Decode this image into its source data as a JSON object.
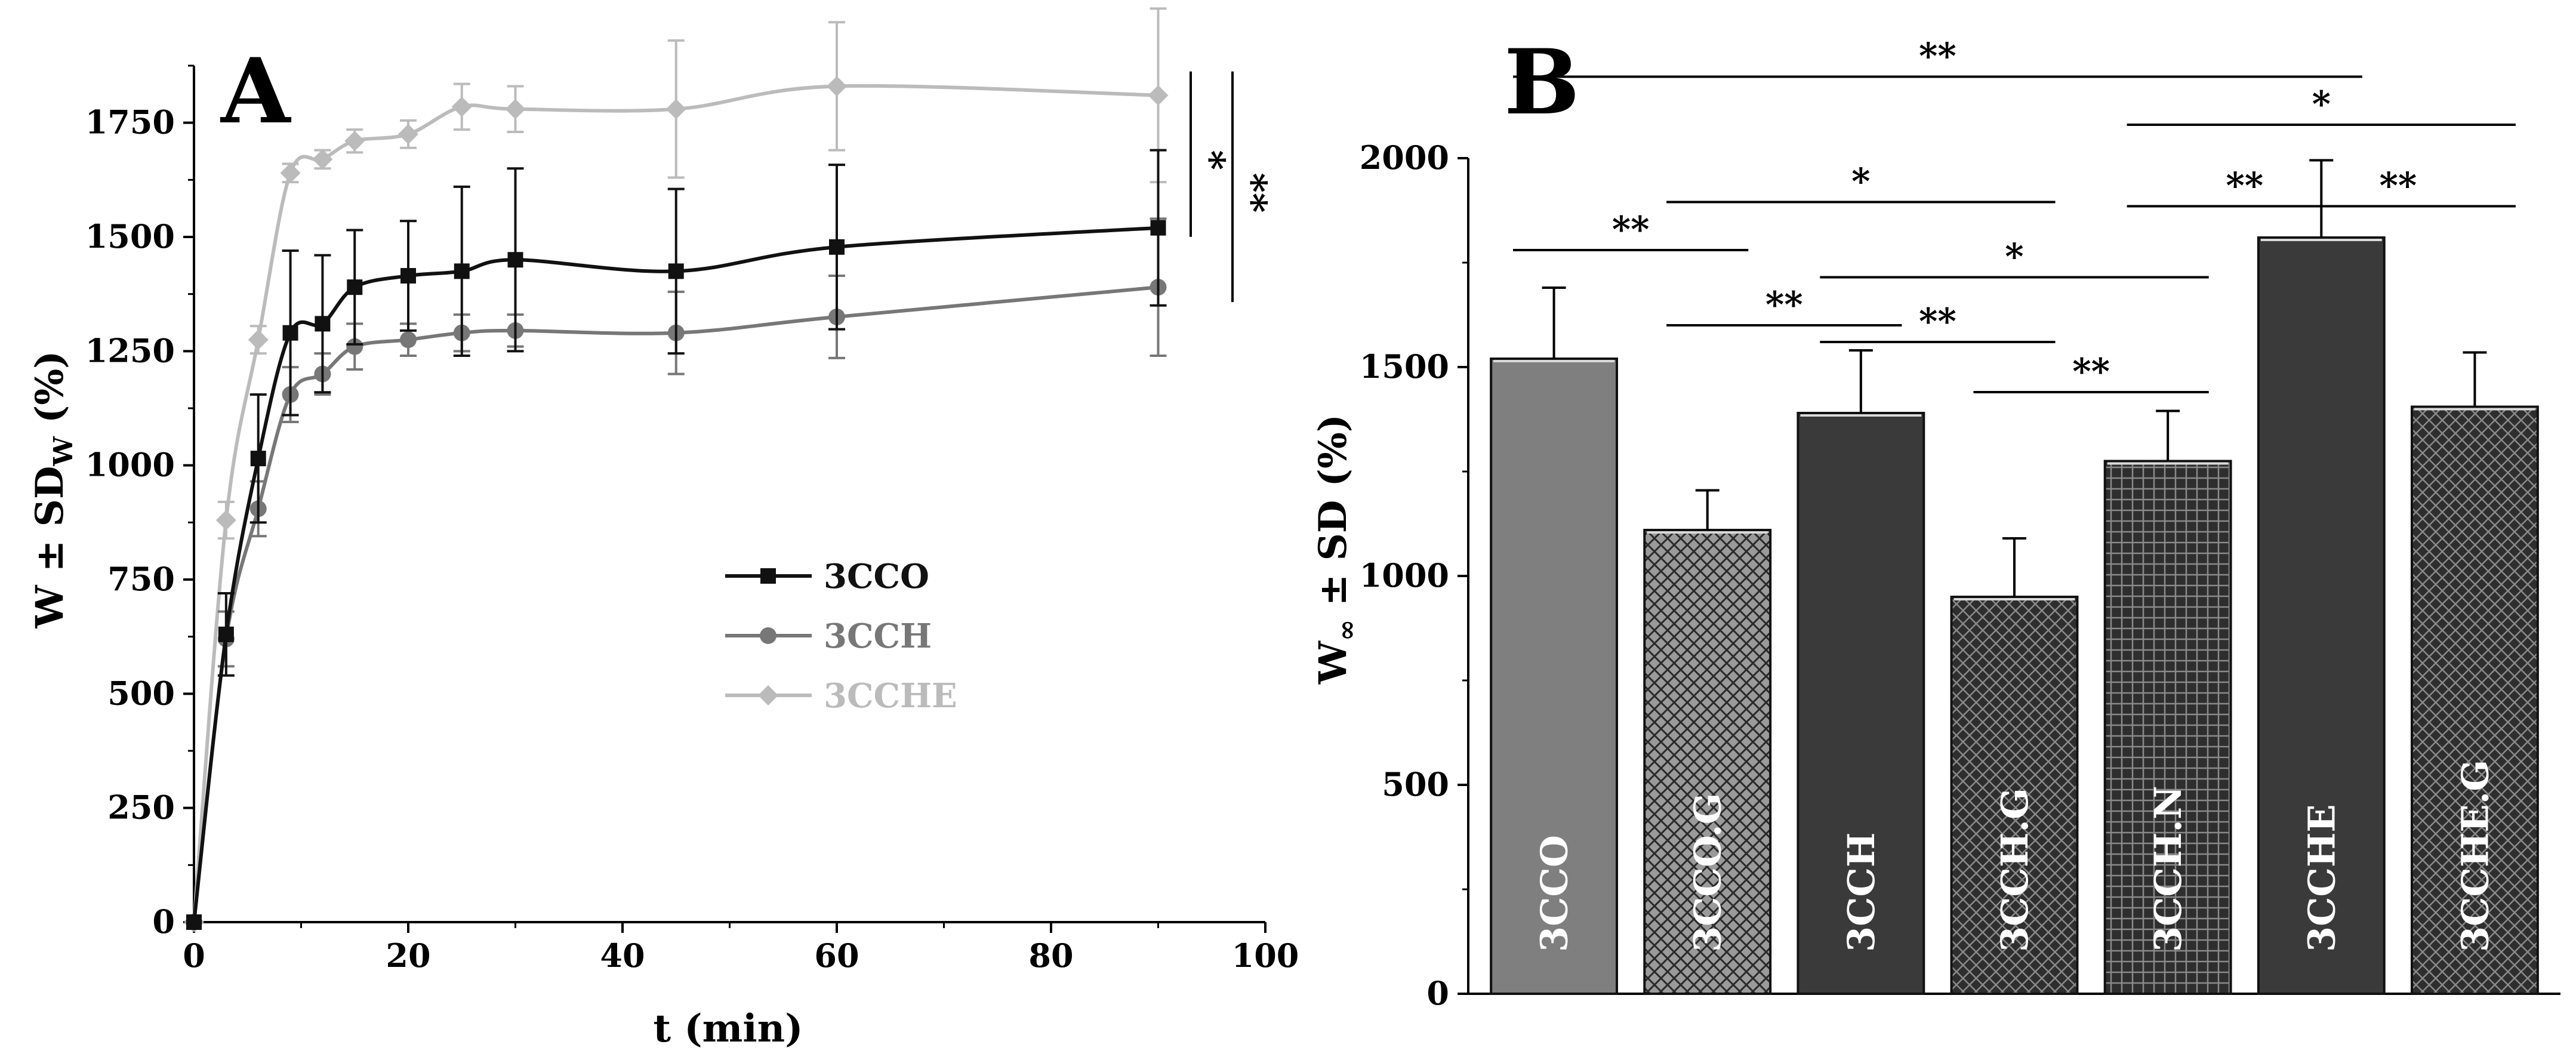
{
  "colors": {
    "series_3CCO": "#111111",
    "series_3CCH": "#777777",
    "series_3CCHE": "#bbbbbb",
    "bar_3CCO": "#7f7f7f",
    "bar_dark": "#3a3a3a",
    "bar_hatch_light": "#9a9a9a",
    "bar_hatch_dark": "#2e2e2e"
  },
  "chart_data": [
    {
      "panel": "A",
      "type": "line",
      "xlabel": "t (min)",
      "ylabel_main": "W ± SD",
      "ylabel_sub": "W",
      "ylabel_tail": " (%)",
      "xlim": [
        0,
        100
      ],
      "ylim": [
        0,
        1875
      ],
      "xticks": [
        "0",
        "20",
        "40",
        "60",
        "80",
        "100"
      ],
      "yticks": [
        "0",
        "250",
        "500",
        "750",
        "1000",
        "1250",
        "1500",
        "1750"
      ],
      "series": [
        {
          "name": "3CCO",
          "marker": "square",
          "x": [
            0,
            3,
            6,
            9,
            12,
            15,
            20,
            25,
            30,
            45,
            60,
            90
          ],
          "y": [
            0,
            630,
            1015,
            1290,
            1310,
            1390,
            1415,
            1425,
            1450,
            1425,
            1478,
            1520
          ],
          "err": [
            0,
            90,
            140,
            180,
            150,
            125,
            120,
            185,
            200,
            180,
            180,
            170
          ]
        },
        {
          "name": "3CCH",
          "marker": "circle",
          "x": [
            0,
            3,
            6,
            9,
            12,
            15,
            20,
            25,
            30,
            45,
            60,
            90
          ],
          "y": [
            0,
            620,
            905,
            1155,
            1200,
            1260,
            1275,
            1290,
            1295,
            1290,
            1325,
            1390
          ],
          "err": [
            0,
            60,
            60,
            60,
            45,
            50,
            35,
            40,
            35,
            90,
            90,
            150
          ]
        },
        {
          "name": "3CCHE",
          "marker": "diamond",
          "x": [
            0,
            3,
            6,
            9,
            12,
            15,
            20,
            25,
            30,
            45,
            60,
            90
          ],
          "y": [
            0,
            880,
            1275,
            1640,
            1670,
            1710,
            1725,
            1785,
            1780,
            1780,
            1830,
            1810
          ],
          "err": [
            0,
            40,
            30,
            20,
            20,
            25,
            30,
            50,
            50,
            150,
            140,
            190
          ]
        }
      ],
      "significance": [
        {
          "label": "*",
          "y_from": 1520,
          "y_to": 1810
        },
        {
          "label": "**",
          "y_from": 1390,
          "y_to": 1810
        }
      ]
    },
    {
      "panel": "B",
      "type": "bar",
      "ylabel_main": "W",
      "ylabel_sub": "∞",
      "ylabel_tail": " ± SD (%)",
      "ylim": [
        0,
        2000
      ],
      "yticks": [
        "0",
        "500",
        "1000",
        "1500",
        "2000"
      ],
      "categories": [
        "3CCO",
        "3CCO.G",
        "3CCH",
        "3CCH.G",
        "3CCH.N",
        "3CCHE",
        "3CCHE.G"
      ],
      "values": [
        1520,
        1110,
        1390,
        950,
        1275,
        1810,
        1405
      ],
      "errors": [
        170,
        95,
        150,
        140,
        120,
        185,
        130
      ],
      "patterns": [
        "solid-gray",
        "crosshatch-light",
        "solid-dark",
        "crosshatch-dark",
        "grid-dark",
        "solid-dark",
        "crosshatch-dark"
      ],
      "significance": [
        {
          "label": "**",
          "from": 0,
          "to": 5,
          "y": 2195
        },
        {
          "label": "*",
          "from": 4,
          "to": 6,
          "y": 2080
        },
        {
          "label": "**",
          "from": 0,
          "to": 1,
          "y": 1780
        },
        {
          "label": "*",
          "from": 1,
          "to": 3,
          "y": 1895
        },
        {
          "label": "**",
          "from": 4,
          "to": 5,
          "y": 1885
        },
        {
          "label": "**",
          "from": 5,
          "to": 6,
          "y": 1885
        },
        {
          "label": "**",
          "from": 1,
          "to": 2,
          "y": 1600
        },
        {
          "label": "*",
          "from": 2,
          "to": 4,
          "y": 1715
        },
        {
          "label": "**",
          "from": 2,
          "to": 3,
          "y": 1560
        },
        {
          "label": "**",
          "from": 3,
          "to": 4,
          "y": 1440
        }
      ]
    }
  ]
}
